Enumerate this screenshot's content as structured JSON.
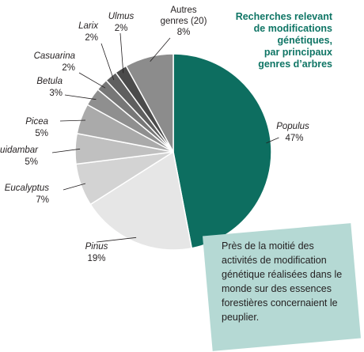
{
  "chart_data": {
    "type": "pie",
    "title_lines": [
      "Recherches relevant",
      "de modifications",
      "génétiques,",
      "par principaux",
      "genres d’arbres"
    ],
    "slices": [
      {
        "name": "Populus",
        "value": 47,
        "label_pct": "47%",
        "color": "#0d6e60",
        "italic": true
      },
      {
        "name": "Pinus",
        "value": 19,
        "label_pct": "19%",
        "color": "#e6e6e6",
        "italic": true
      },
      {
        "name": "Eucalyptus",
        "value": 7,
        "label_pct": "7%",
        "color": "#d3d3d3",
        "italic": true
      },
      {
        "name": "Liquidambar",
        "value": 5,
        "label_pct": "5%",
        "color": "#c0c0c0",
        "italic": true
      },
      {
        "name": "Picea",
        "value": 5,
        "label_pct": "5%",
        "color": "#aaaaaa",
        "italic": true
      },
      {
        "name": "Betula",
        "value": 3,
        "label_pct": "3%",
        "color": "#8f8f8f",
        "italic": true
      },
      {
        "name": "Casuarina",
        "value": 2,
        "label_pct": "2%",
        "color": "#777777",
        "italic": true
      },
      {
        "name": "Larix",
        "value": 2,
        "label_pct": "2%",
        "color": "#5f5f5f",
        "italic": true
      },
      {
        "name": "Ulmus",
        "value": 2,
        "label_pct": "2%",
        "color": "#4b4b4b",
        "italic": true
      },
      {
        "name": "Autres genres (20)",
        "value": 8,
        "label_pct": "8%",
        "color": "#8c8c8c",
        "italic": false
      }
    ]
  },
  "callout": {
    "text": "Près de la moitié des activités de modification génétique réalisées dans le monde sur des essences forestières concernaient le peuplier."
  },
  "colors": {
    "title": "#0f7565",
    "callout_bg": "#b5d9d4",
    "slice_border": "#ffffff"
  }
}
